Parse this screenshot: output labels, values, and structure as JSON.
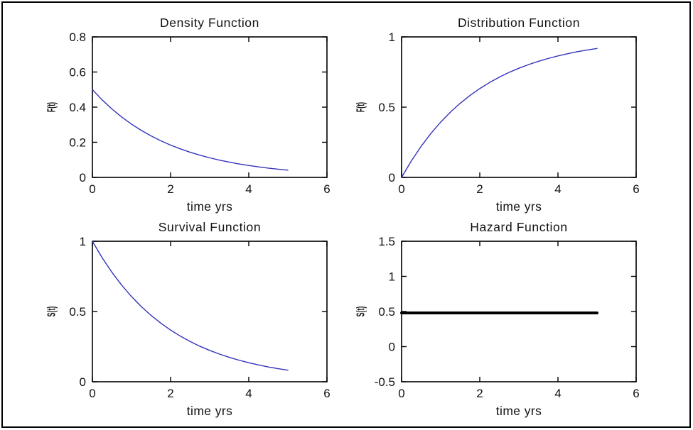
{
  "figure": {
    "background": "#ffffff",
    "border_color": "#000000",
    "axis_color": "#000000",
    "text_color": "#111111"
  },
  "chart_data": [
    {
      "id": "density",
      "type": "line",
      "title": "Density Function",
      "xlabel": "time yrs",
      "ylabel": "F(t)",
      "xlim": [
        0,
        6
      ],
      "ylim": [
        0,
        0.8
      ],
      "xticks": [
        0,
        2,
        4,
        6
      ],
      "yticks": [
        0,
        0.2,
        0.4,
        0.6,
        0.8
      ],
      "grid": false,
      "legend": null,
      "line_color": "#3333bb",
      "line_width": 1.4,
      "x": [
        0,
        0.25,
        0.5,
        0.75,
        1,
        1.25,
        1.5,
        1.75,
        2,
        2.25,
        2.5,
        2.75,
        3,
        3.25,
        3.5,
        3.75,
        4,
        4.25,
        4.5,
        4.75,
        5
      ],
      "y": [
        0.5,
        0.4412,
        0.3894,
        0.3436,
        0.3033,
        0.2676,
        0.2362,
        0.2084,
        0.1839,
        0.1623,
        0.1433,
        0.1264,
        0.1116,
        0.0984,
        0.0869,
        0.0767,
        0.0677,
        0.0597,
        0.0527,
        0.0465,
        0.041
      ]
    },
    {
      "id": "distribution",
      "type": "line",
      "title": "Distribution Function",
      "xlabel": "time yrs",
      "ylabel": "F(t)",
      "xlim": [
        0,
        6
      ],
      "ylim": [
        0,
        1
      ],
      "xticks": [
        0,
        2,
        4,
        6
      ],
      "yticks": [
        0,
        0.5,
        1
      ],
      "grid": false,
      "legend": null,
      "line_color": "#3333bb",
      "line_width": 1.4,
      "x": [
        0,
        0.25,
        0.5,
        0.75,
        1,
        1.25,
        1.5,
        1.75,
        2,
        2.25,
        2.5,
        2.75,
        3,
        3.25,
        3.5,
        3.75,
        4,
        4.25,
        4.5,
        4.75,
        5
      ],
      "y": [
        0,
        0.1175,
        0.2212,
        0.3127,
        0.3935,
        0.4647,
        0.5276,
        0.5831,
        0.6321,
        0.6753,
        0.7135,
        0.7473,
        0.7769,
        0.803,
        0.8262,
        0.8466,
        0.8647,
        0.8806,
        0.8946,
        0.907,
        0.9179
      ]
    },
    {
      "id": "survival",
      "type": "line",
      "title": "Survival Function",
      "xlabel": "time yrs",
      "ylabel": "S(t)",
      "xlim": [
        0,
        6
      ],
      "ylim": [
        0,
        1
      ],
      "xticks": [
        0,
        2,
        4,
        6
      ],
      "yticks": [
        0,
        0.5,
        1
      ],
      "grid": false,
      "legend": null,
      "line_color": "#3333bb",
      "line_width": 1.4,
      "x": [
        0,
        0.25,
        0.5,
        0.75,
        1,
        1.25,
        1.5,
        1.75,
        2,
        2.25,
        2.5,
        2.75,
        3,
        3.25,
        3.5,
        3.75,
        4,
        4.25,
        4.5,
        4.75,
        5
      ],
      "y": [
        1,
        0.8825,
        0.7788,
        0.6873,
        0.6065,
        0.5353,
        0.4724,
        0.4169,
        0.3679,
        0.3247,
        0.2865,
        0.2528,
        0.2231,
        0.1969,
        0.1738,
        0.1534,
        0.1353,
        0.1194,
        0.1054,
        0.093,
        0.0821
      ]
    },
    {
      "id": "hazard",
      "type": "line",
      "title": "Hazard Function",
      "xlabel": "time yrs",
      "ylabel": "S(t)",
      "xlim": [
        0,
        6
      ],
      "ylim": [
        -0.5,
        1.5
      ],
      "xticks": [
        0,
        2,
        4,
        6
      ],
      "yticks": [
        -0.5,
        0,
        0.5,
        1,
        1.5
      ],
      "grid": false,
      "legend": null,
      "line_color": "#000000",
      "line_width": 4,
      "x": [
        0,
        5
      ],
      "y": [
        0.48,
        0.48
      ]
    }
  ]
}
